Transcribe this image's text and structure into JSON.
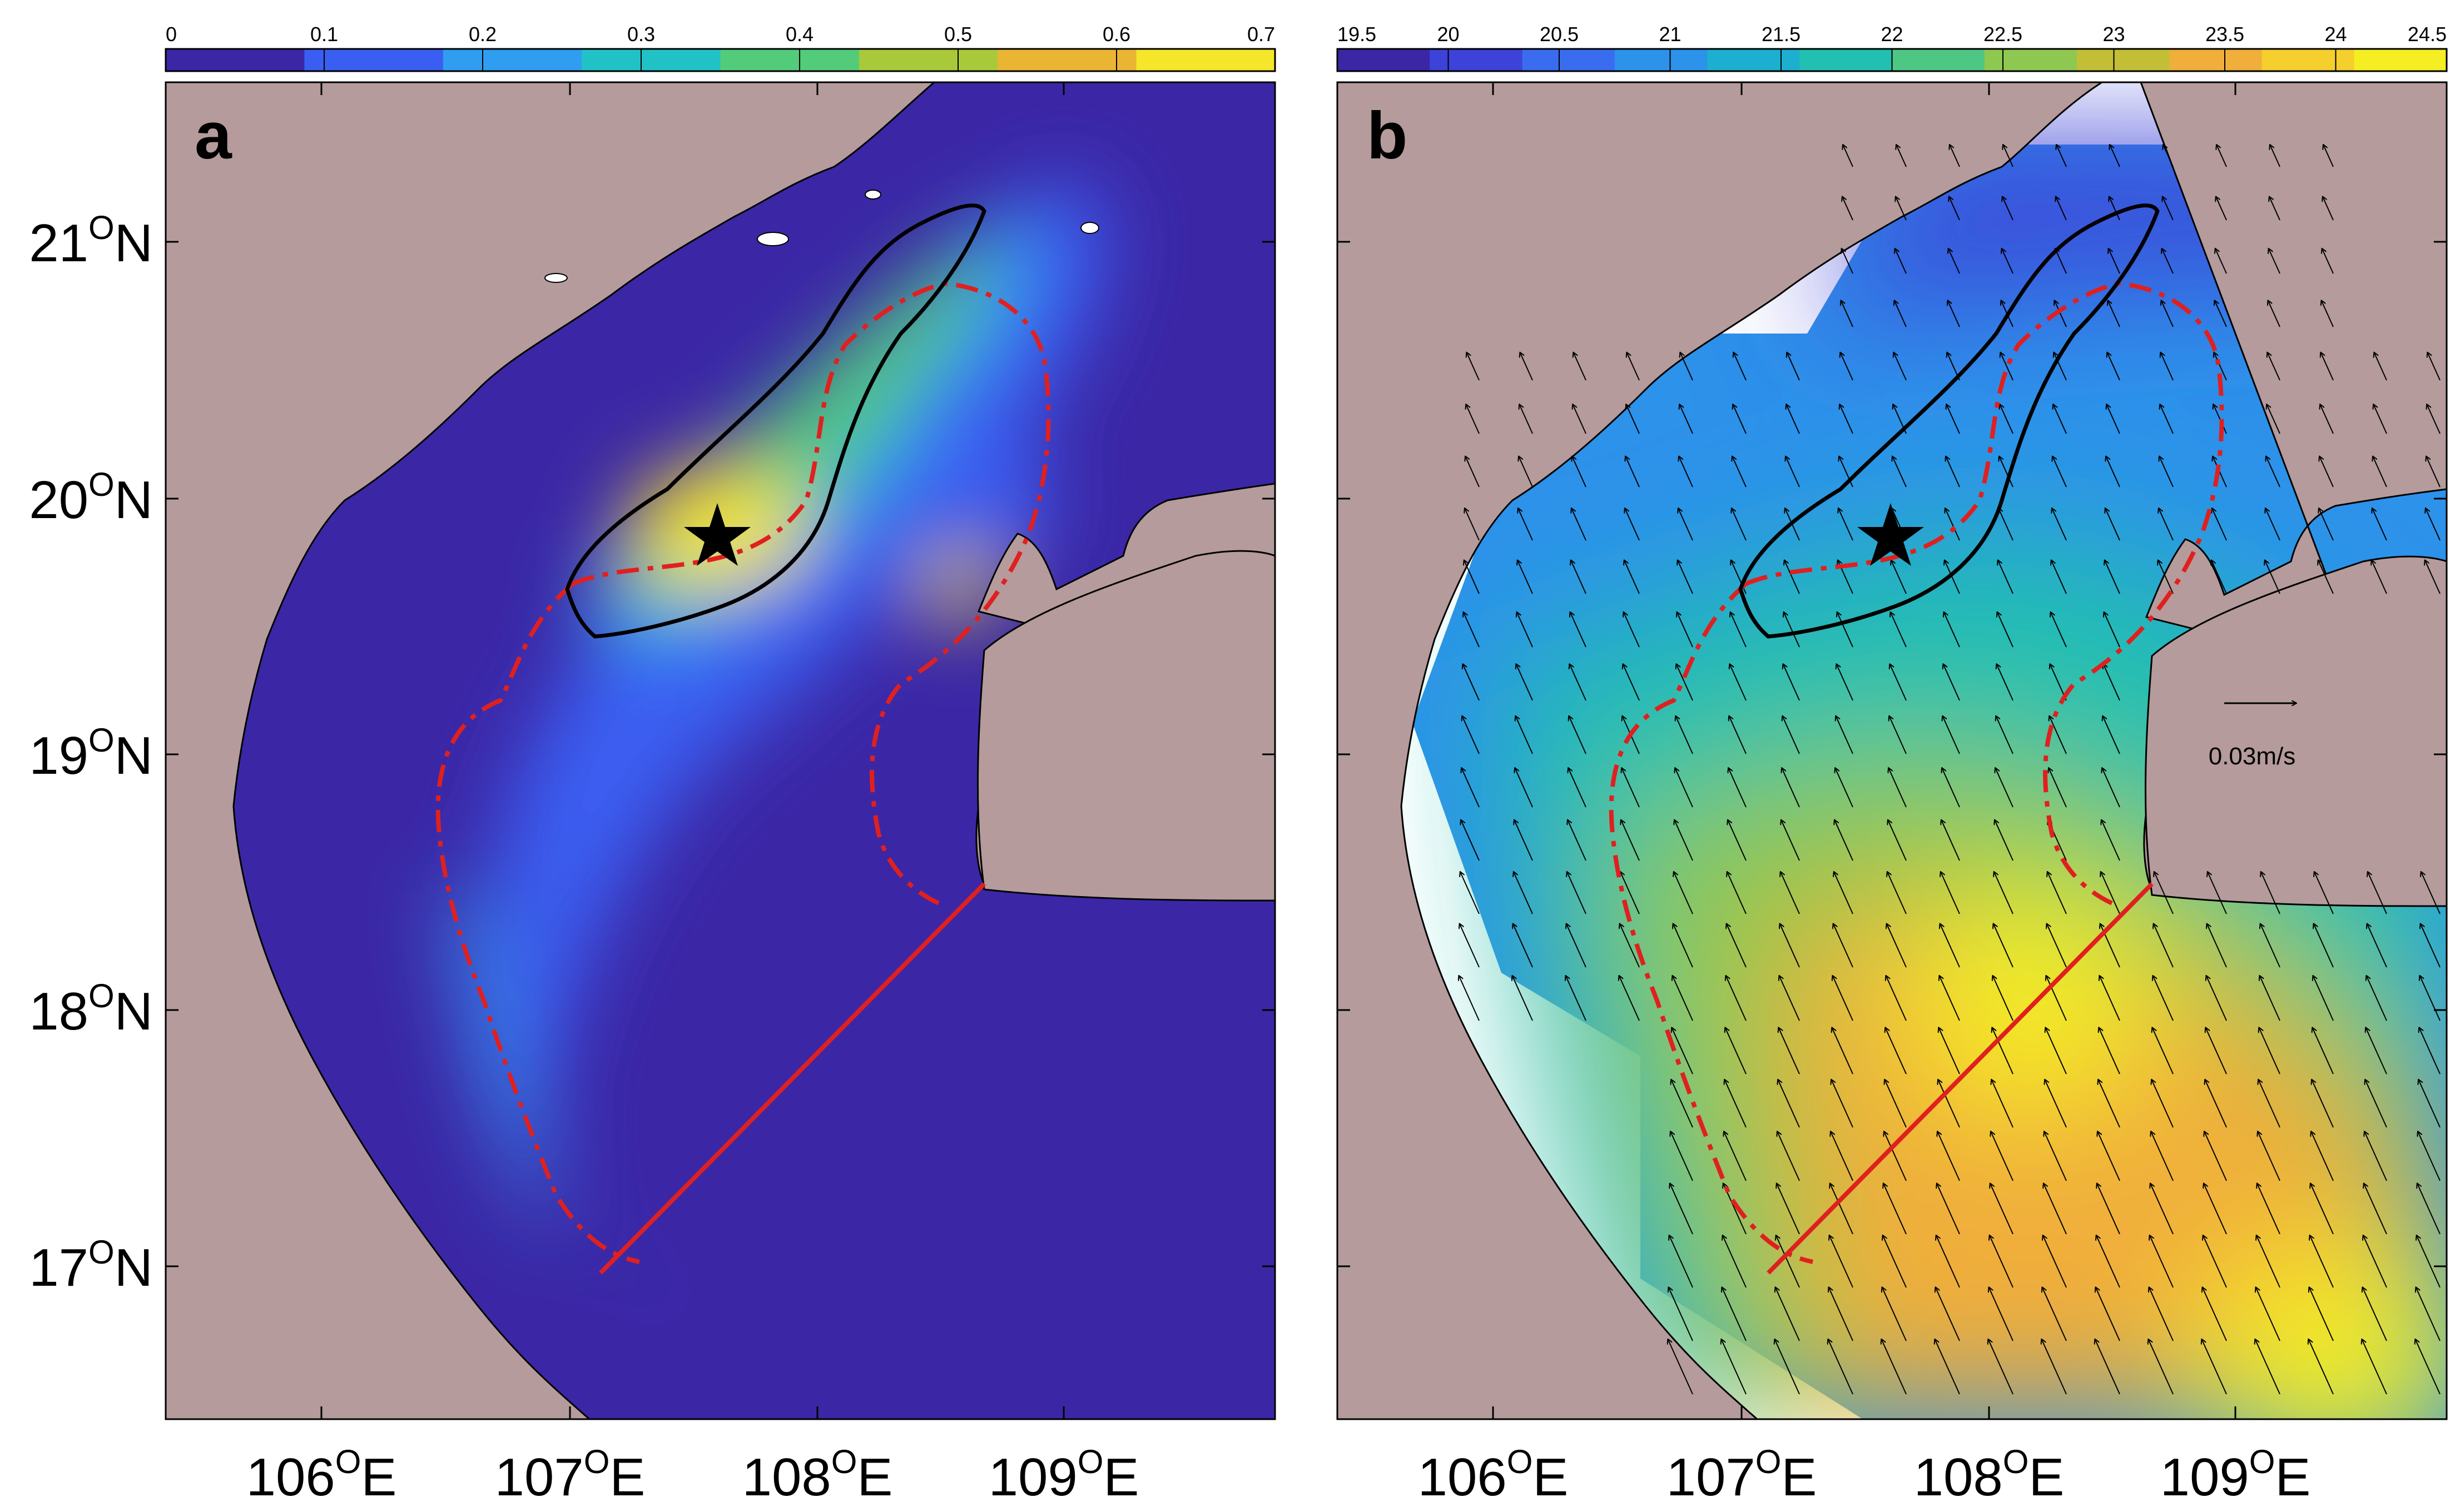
{
  "panels": [
    {
      "label": "a",
      "colorbar": {
        "ticks": [
          "0",
          "0.1",
          "0.2",
          "0.3",
          "0.4",
          "0.5",
          "0.6",
          "0.7"
        ],
        "colors": [
          "#3b27a6",
          "#3b5ef2",
          "#2f9df0",
          "#21c2c6",
          "#52cc7a",
          "#a9c83a",
          "#eab533",
          "#f5e62a"
        ]
      },
      "x_ticks": [
        "106°E",
        "107°E",
        "108°E",
        "109°E"
      ],
      "y_ticks": [
        "21°N",
        "20°N",
        "19°N",
        "18°N",
        "17°N"
      ]
    },
    {
      "label": "b",
      "colorbar": {
        "ticks": [
          "19.5",
          "20",
          "20.5",
          "21",
          "21.5",
          "22",
          "22.5",
          "23",
          "23.5",
          "24",
          "24.5"
        ],
        "colors": [
          "#3b27a6",
          "#3d42d8",
          "#3a6cf0",
          "#2d92ea",
          "#1cafcf",
          "#21c0b0",
          "#4ec684",
          "#8ec850",
          "#c2bf36",
          "#f0ae3a",
          "#f5cf2e",
          "#f5ee23"
        ]
      },
      "x_ticks": [
        "106°E",
        "107°E",
        "108°E",
        "109°E"
      ],
      "vector_scale_label": "0.03m/s"
    }
  ],
  "colors": {
    "land": "#b59b9b",
    "ocean_low": "#3b27a6",
    "contour_black": "#000000",
    "contour_red": "#e0201f",
    "section_line": "#e0201f"
  },
  "markers": {
    "star": "star-icon"
  }
}
